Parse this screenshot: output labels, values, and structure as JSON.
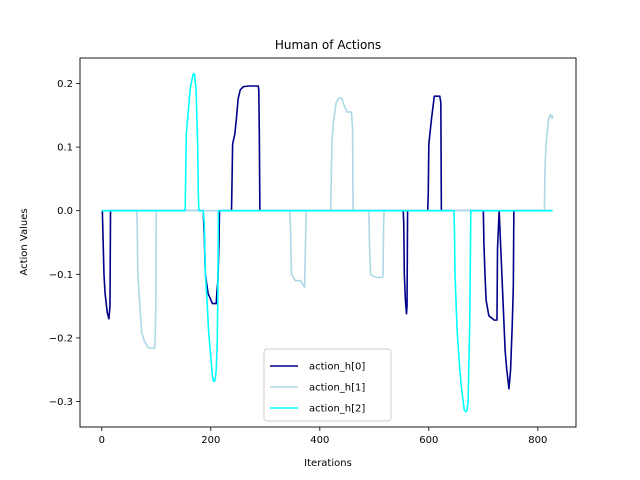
{
  "chart_data": {
    "type": "line",
    "title": "Human of Actions",
    "xlabel": "Iterations",
    "ylabel": "Action Values",
    "xlim": [
      -40,
      870
    ],
    "ylim": [
      -0.34,
      0.24
    ],
    "xticks": [
      0,
      200,
      400,
      600,
      800
    ],
    "yticks": [
      -0.3,
      -0.2,
      -0.1,
      0.0,
      0.1,
      0.2
    ],
    "ytick_labels": [
      "−0.3",
      "−0.2",
      "−0.1",
      "0.0",
      "0.1",
      "0.2"
    ],
    "xtick_labels": [
      "0",
      "200",
      "400",
      "600",
      "800"
    ],
    "grid": false,
    "legend_position": "lower-center",
    "series": [
      {
        "name": "action_h[0]",
        "color": "#00008b",
        "x": [
          0,
          1,
          4,
          6,
          10,
          13,
          15,
          16,
          185,
          186,
          188,
          190,
          195,
          200,
          203,
          210,
          211,
          213,
          215,
          216,
          238,
          239,
          240,
          244,
          247,
          250,
          254,
          260,
          270,
          280,
          287,
          288,
          289,
          290,
          553,
          554,
          555,
          557,
          559,
          560,
          561,
          570,
          598,
          599,
          600,
          605,
          610,
          620,
          622,
          623,
          700,
          701,
          703,
          705,
          710,
          720,
          725,
          726,
          729,
          735,
          740,
          743,
          747,
          750,
          753,
          755,
          756,
          827
        ],
        "y": [
          0,
          0,
          -0.1,
          -0.13,
          -0.16,
          -0.17,
          -0.15,
          0,
          0,
          0,
          -0.04,
          -0.1,
          -0.13,
          -0.14,
          -0.146,
          -0.146,
          -0.13,
          -0.11,
          -0.05,
          0,
          0,
          0.05,
          0.105,
          0.12,
          0.145,
          0.175,
          0.19,
          0.195,
          0.196,
          0.196,
          0.196,
          0.19,
          0.12,
          0,
          0,
          -0.02,
          -0.1,
          -0.14,
          -0.162,
          -0.15,
          0,
          0,
          0,
          0.03,
          0.105,
          0.145,
          0.18,
          0.18,
          0.17,
          0,
          0,
          -0.05,
          -0.1,
          -0.14,
          -0.165,
          -0.172,
          -0.172,
          -0.06,
          0,
          -0.12,
          -0.22,
          -0.25,
          -0.28,
          -0.25,
          -0.18,
          -0.12,
          0,
          0
        ]
      },
      {
        "name": "action_h[1]",
        "color": "#add8e6",
        "x": [
          0,
          64,
          65,
          66,
          70,
          73,
          78,
          85,
          90,
          95,
          97,
          98,
          99,
          100,
          320,
          345,
          346,
          348,
          355,
          360,
          365,
          368,
          372,
          373,
          375,
          420,
          421,
          422,
          425,
          430,
          435,
          440,
          445,
          450,
          455,
          458,
          460,
          461,
          490,
          491,
          493,
          500,
          505,
          515,
          516,
          517,
          518,
          812,
          813,
          815,
          818,
          820,
          823,
          826,
          827
        ],
        "y": [
          0,
          0,
          -0.02,
          -0.1,
          -0.15,
          -0.19,
          -0.205,
          -0.215,
          -0.216,
          -0.216,
          -0.216,
          -0.2,
          -0.15,
          0,
          0,
          0,
          -0.02,
          -0.1,
          -0.11,
          -0.11,
          -0.11,
          -0.115,
          -0.12,
          -0.08,
          0,
          0,
          0.05,
          0.105,
          0.14,
          0.17,
          0.177,
          0.177,
          0.165,
          0.155,
          0.155,
          0.155,
          0.13,
          0,
          0,
          -0.05,
          -0.1,
          -0.104,
          -0.105,
          -0.105,
          -0.1,
          -0.02,
          0,
          0,
          0.06,
          0.105,
          0.13,
          0.145,
          0.151,
          0.145,
          0.15
        ]
      },
      {
        "name": "action_h[2]",
        "color": "#00ffff",
        "x": [
          0,
          153,
          154,
          155,
          158,
          162,
          165,
          168,
          170,
          173,
          176,
          177,
          178,
          186,
          188,
          190,
          193,
          196,
          200,
          203,
          205,
          207,
          208,
          210,
          212,
          213,
          214,
          646,
          647,
          648,
          652,
          656,
          660,
          663,
          665,
          668,
          670,
          672,
          673,
          675,
          677,
          827
        ],
        "y": [
          0,
          0,
          0.06,
          0.12,
          0.15,
          0.19,
          0.205,
          0.215,
          0.215,
          0.19,
          0.1,
          0.03,
          0,
          0,
          -0.02,
          -0.1,
          -0.14,
          -0.19,
          -0.23,
          -0.26,
          -0.268,
          -0.268,
          -0.265,
          -0.25,
          -0.2,
          -0.12,
          0,
          0,
          -0.03,
          -0.1,
          -0.19,
          -0.24,
          -0.28,
          -0.3,
          -0.313,
          -0.316,
          -0.314,
          -0.3,
          -0.26,
          -0.18,
          0,
          0
        ]
      }
    ]
  }
}
